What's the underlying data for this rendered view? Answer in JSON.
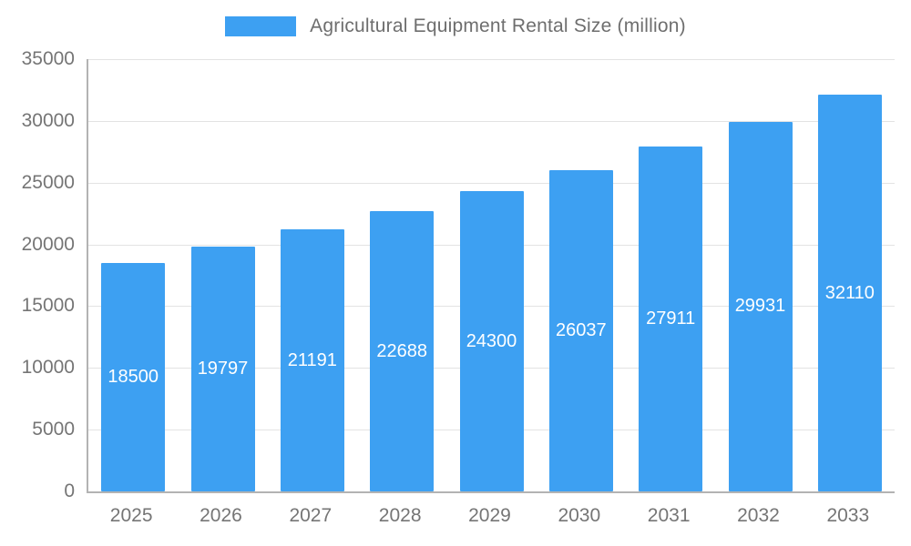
{
  "chart_data": {
    "type": "bar",
    "title": "Agricultural Equipment Rental Size (million)",
    "categories": [
      "2025",
      "2026",
      "2027",
      "2028",
      "2029",
      "2030",
      "2031",
      "2032",
      "2033"
    ],
    "values": [
      18500,
      19797,
      21191,
      22688,
      24300,
      26037,
      27911,
      29931,
      32110
    ],
    "xlabel": "",
    "ylabel": "",
    "ylim": [
      0,
      35000
    ],
    "yticks": [
      0,
      5000,
      10000,
      15000,
      20000,
      25000,
      30000,
      35000
    ],
    "grid": true,
    "legend_position": "top",
    "bar_color": "#3da0f2",
    "value_label_color": "#ffffff",
    "axis_label_color": "#757575",
    "gridline_color": "#e3e3e3"
  }
}
